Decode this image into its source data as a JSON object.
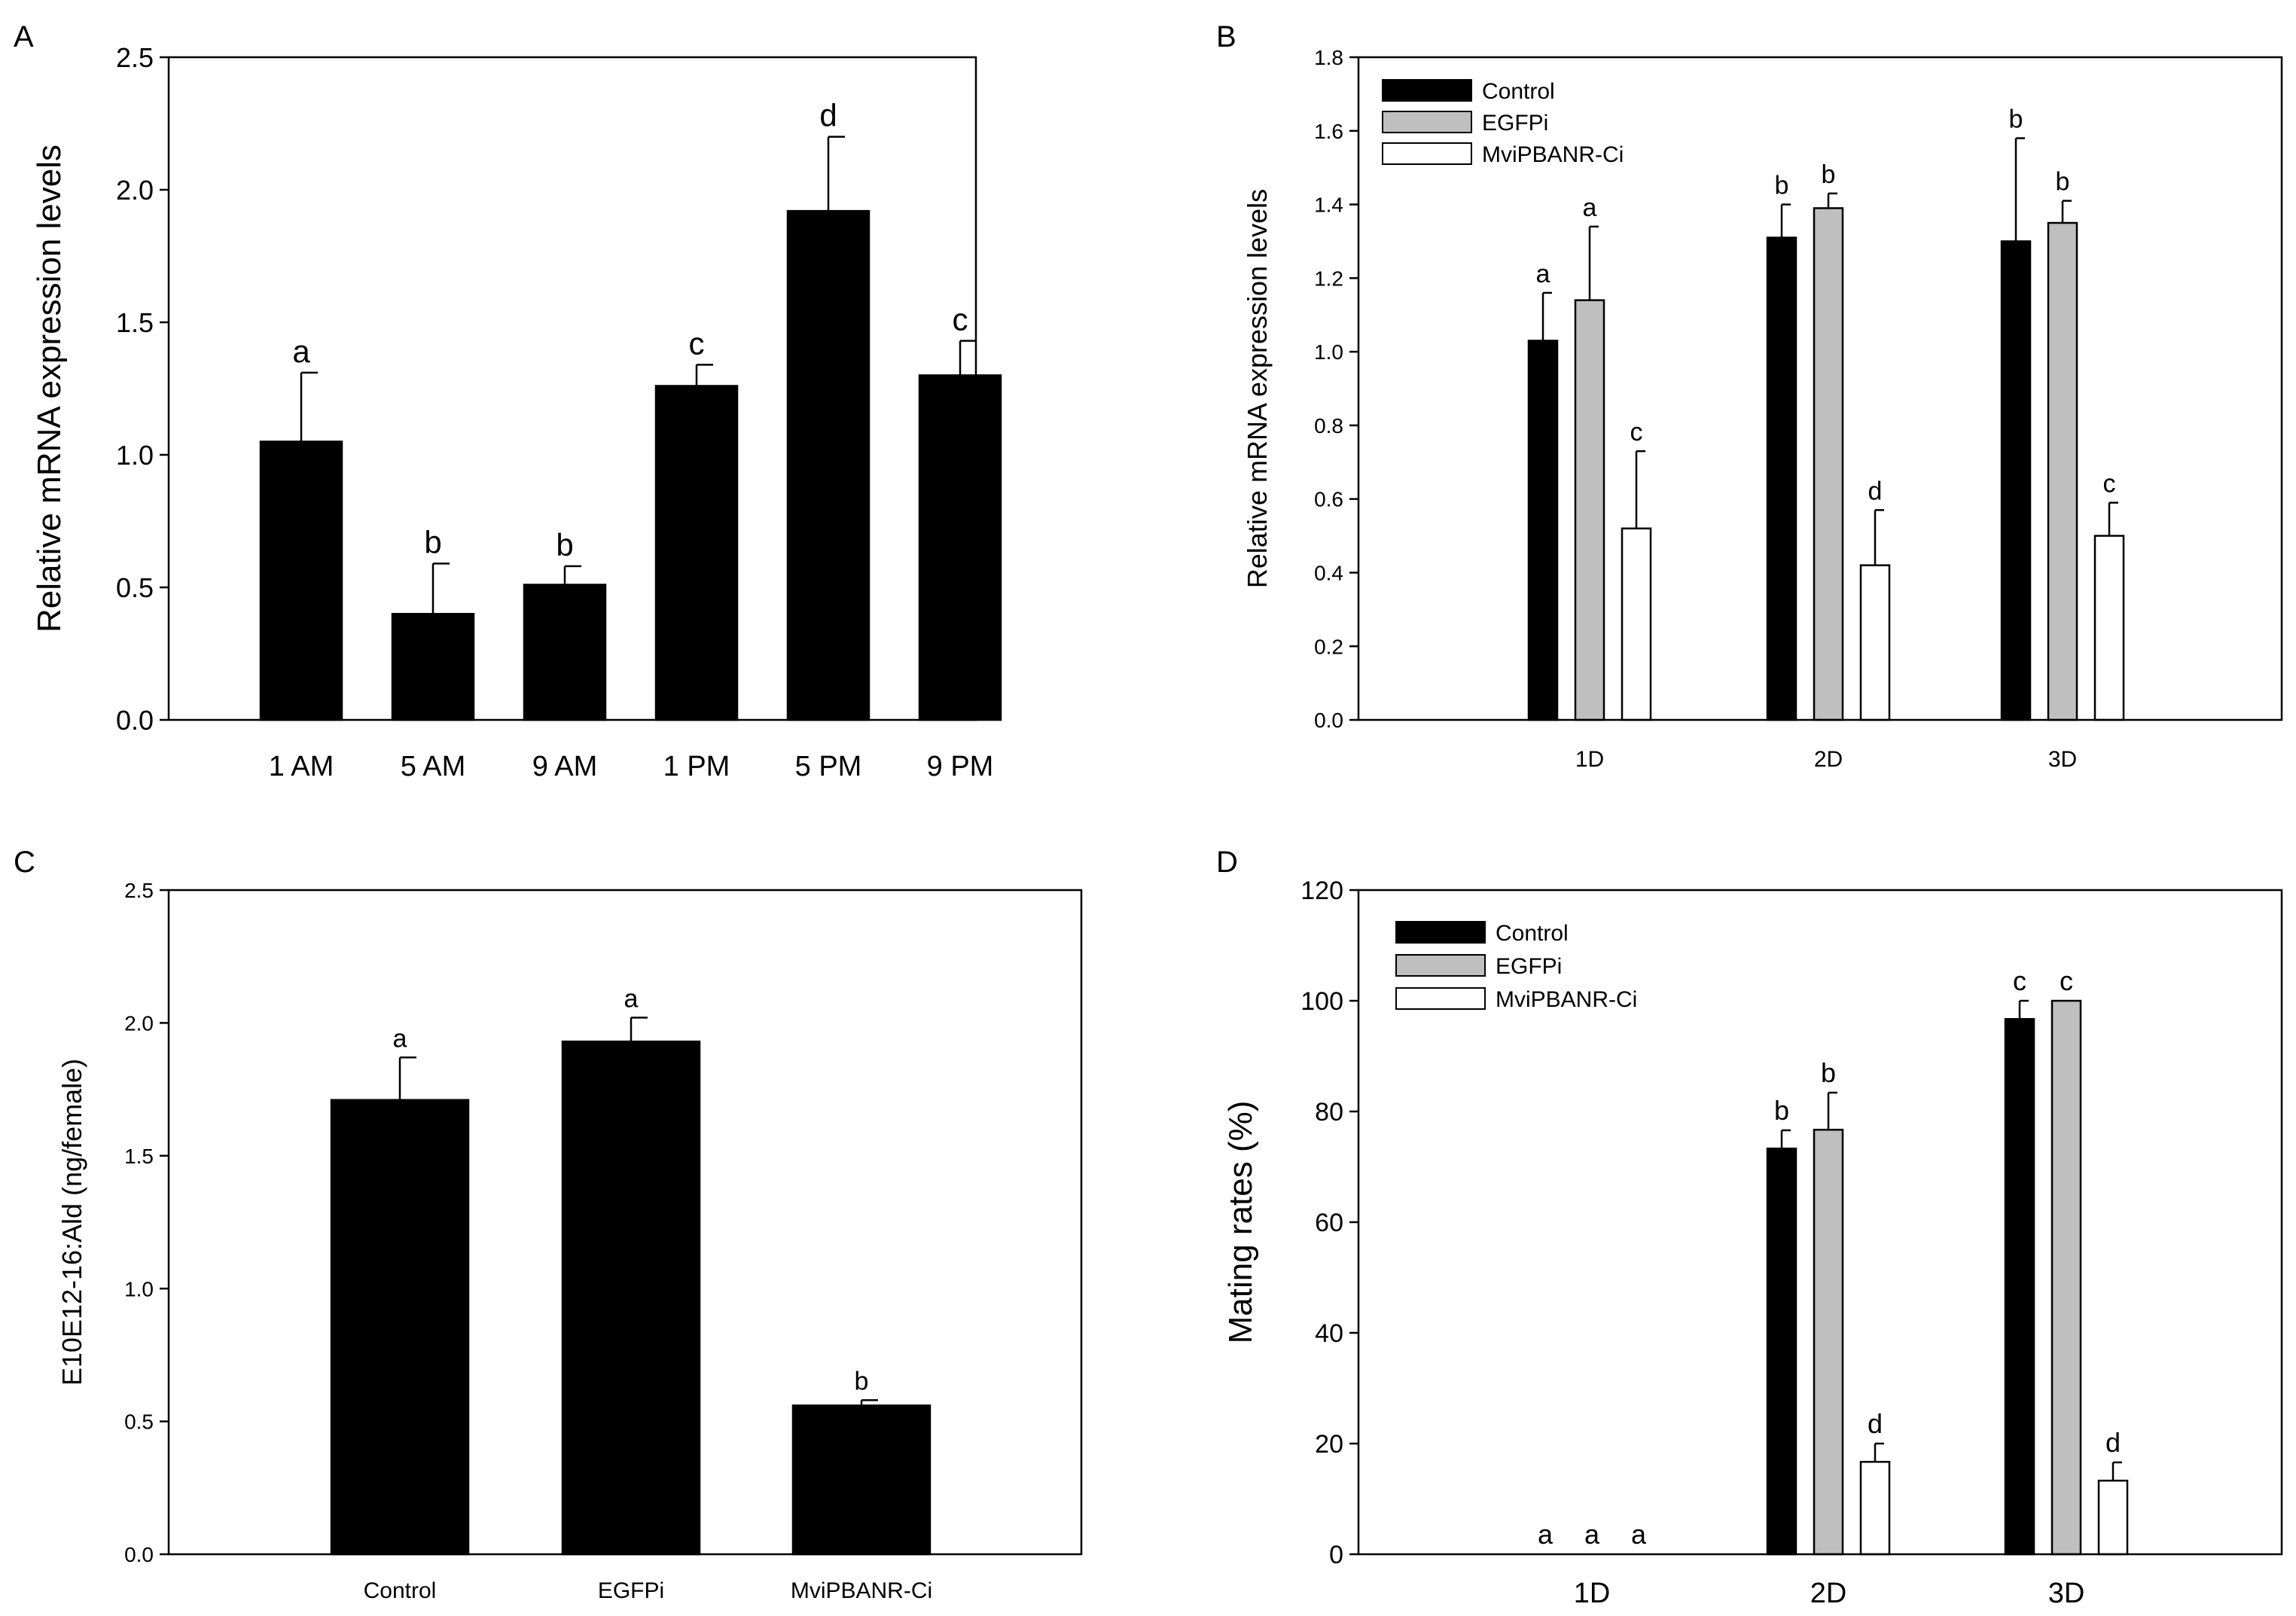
{
  "colors": {
    "control": "#000000",
    "egfpi": "#bfbfbf",
    "mvipbanr": "#ffffff",
    "axis": "#000000"
  },
  "chart_data": [
    {
      "id": "A",
      "panel_label": "A",
      "type": "bar",
      "ylabel": "Relative mRNA expression levels",
      "xlabel": "",
      "ylim": [
        0,
        2.5
      ],
      "yticks": [
        "0.0",
        "0.5",
        "1.0",
        "1.5",
        "2.0",
        "2.5"
      ],
      "categories": [
        "1 AM",
        "5 AM",
        "9 AM",
        "1 PM",
        "5 PM",
        "9 PM"
      ],
      "series": [
        {
          "name": "",
          "color": "#000000",
          "values": [
            1.05,
            0.4,
            0.51,
            1.26,
            1.92,
            1.3
          ],
          "errors": [
            0.26,
            0.19,
            0.07,
            0.08,
            0.28,
            0.13
          ],
          "letters": [
            "a",
            "b",
            "b",
            "c",
            "d",
            "c"
          ]
        }
      ],
      "legend": []
    },
    {
      "id": "B",
      "panel_label": "B",
      "type": "bar",
      "ylabel": "Relative mRNA expression levels",
      "xlabel": "",
      "ylim": [
        0,
        1.8
      ],
      "yticks": [
        "0.0",
        "0.2",
        "0.4",
        "0.6",
        "0.8",
        "1.0",
        "1.2",
        "1.4",
        "1.6",
        "1.8"
      ],
      "categories": [
        "1D",
        "2D",
        "3D"
      ],
      "series": [
        {
          "name": "Control",
          "color": "#000000",
          "values": [
            1.03,
            1.31,
            1.3
          ],
          "errors": [
            0.13,
            0.09,
            0.28
          ],
          "letters": [
            "a",
            "b",
            "b"
          ]
        },
        {
          "name": "EGFPi",
          "color": "#bfbfbf",
          "values": [
            1.14,
            1.39,
            1.35
          ],
          "errors": [
            0.2,
            0.04,
            0.06
          ],
          "letters": [
            "a",
            "b",
            "b"
          ]
        },
        {
          "name": "MviPBANR-Ci",
          "color": "#ffffff",
          "values": [
            0.52,
            0.42,
            0.5
          ],
          "errors": [
            0.21,
            0.15,
            0.09
          ],
          "letters": [
            "c",
            "d",
            "c"
          ]
        }
      ],
      "legend": [
        "Control",
        "EGFPi",
        "MviPBANR-Ci"
      ]
    },
    {
      "id": "C",
      "panel_label": "C",
      "type": "bar",
      "ylabel": "E10E12-16:Ald (ng/female)",
      "xlabel": "",
      "ylim": [
        0,
        2.5
      ],
      "yticks": [
        "0.0",
        "0.5",
        "1.0",
        "1.5",
        "2.0",
        "2.5"
      ],
      "categories": [
        "Control",
        "EGFPi",
        "MviPBANR-Ci"
      ],
      "series": [
        {
          "name": "",
          "color": "#000000",
          "values": [
            1.71,
            1.93,
            0.56
          ],
          "errors": [
            0.16,
            0.09,
            0.02
          ],
          "letters": [
            "a",
            "a",
            "b"
          ]
        }
      ],
      "legend": []
    },
    {
      "id": "D",
      "panel_label": "D",
      "type": "bar",
      "ylabel": "Mating rates (%)",
      "xlabel": "",
      "ylim": [
        0,
        120
      ],
      "yticks": [
        "0",
        "20",
        "40",
        "60",
        "80",
        "100",
        "120"
      ],
      "categories": [
        "1D",
        "2D",
        "3D"
      ],
      "series": [
        {
          "name": "Control",
          "color": "#000000",
          "values": [
            0,
            73.3,
            96.7
          ],
          "errors": [
            0,
            3.3,
            3.3
          ],
          "letters": [
            "a",
            "b",
            "c"
          ]
        },
        {
          "name": "EGFPi",
          "color": "#bfbfbf",
          "values": [
            0,
            76.7,
            100
          ],
          "errors": [
            0,
            6.7,
            0
          ],
          "letters": [
            "a",
            "b",
            "c"
          ]
        },
        {
          "name": "MviPBANR-Ci",
          "color": "#ffffff",
          "values": [
            0,
            16.7,
            13.3
          ],
          "errors": [
            0,
            3.3,
            3.3
          ],
          "letters": [
            "a",
            "d",
            "d"
          ]
        }
      ],
      "legend": [
        "Control",
        "EGFPi",
        "MviPBANR-Ci"
      ]
    }
  ]
}
